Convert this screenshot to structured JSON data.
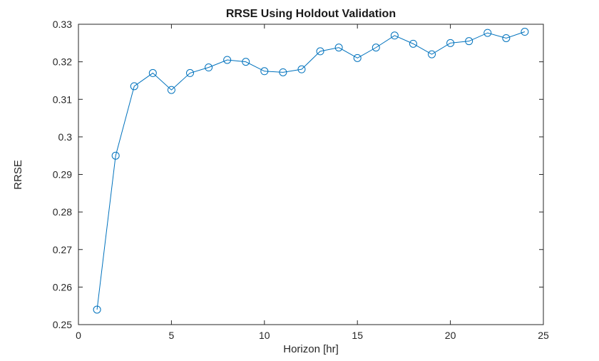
{
  "chart_data": {
    "type": "line",
    "title": "RRSE Using Holdout Validation",
    "xlabel": "Horizon [hr]",
    "ylabel": "RRSE",
    "xlim": [
      0,
      25
    ],
    "ylim": [
      0.25,
      0.33
    ],
    "x_ticks": [
      0,
      5,
      10,
      15,
      20,
      25
    ],
    "x_tick_labels": [
      "0",
      "5",
      "10",
      "15",
      "20",
      "25"
    ],
    "y_ticks": [
      0.25,
      0.26,
      0.27,
      0.28,
      0.29,
      0.3,
      0.31,
      0.32,
      0.33
    ],
    "y_tick_labels": [
      "0.25",
      "0.26",
      "0.27",
      "0.28",
      "0.29",
      "0.3",
      "0.31",
      "0.32",
      "0.33"
    ],
    "grid": false,
    "legend_position": "none",
    "line_color": "#0072BD",
    "axis_color": "#262626",
    "marker": "circle",
    "x": [
      1,
      2,
      3,
      4,
      5,
      6,
      7,
      8,
      9,
      10,
      11,
      12,
      13,
      14,
      15,
      16,
      17,
      18,
      19,
      20,
      21,
      22,
      23,
      24
    ],
    "y": [
      0.254,
      0.295,
      0.3135,
      0.317,
      0.3125,
      0.317,
      0.3185,
      0.3205,
      0.32,
      0.3175,
      0.3172,
      0.318,
      0.3228,
      0.3238,
      0.321,
      0.3238,
      0.327,
      0.3248,
      0.322,
      0.325,
      0.3255,
      0.3277,
      0.3263,
      0.328
    ]
  }
}
